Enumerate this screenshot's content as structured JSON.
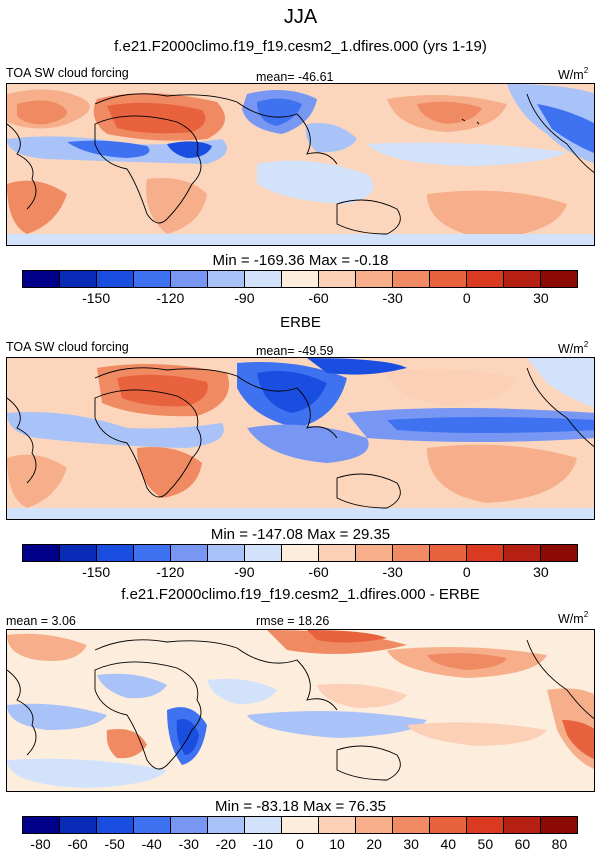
{
  "season": "JJA",
  "panel1": {
    "case_title": "f.e21.F2000climo.f19_f19.cesm2_1.dfires.000 (yrs 1-19)",
    "variable": "TOA SW cloud forcing",
    "mean_label": "mean= -46.61",
    "units": "W/m",
    "units_sup": "2",
    "minmax": "Min = -169.36 Max =  -0.18"
  },
  "panel2": {
    "case_title": "ERBE",
    "variable": "TOA SW cloud forcing",
    "mean_label": "mean= -49.59",
    "units": "W/m",
    "units_sup": "2",
    "minmax": "Min = -147.08 Max =  29.35"
  },
  "panel3": {
    "case_title": "f.e21.F2000climo.f19_f19.cesm2_1.dfires.000 - ERBE",
    "mean_label": "mean =   3.06",
    "rmse_label": "rmse =  18.26",
    "units": "W/m",
    "units_sup": "2",
    "minmax": "Min = -83.18 Max =  76.35"
  },
  "colorbar_abs": {
    "colors": [
      "#00008b",
      "#0a2ab8",
      "#1a4ee0",
      "#3f72f0",
      "#7897f2",
      "#a9c2f7",
      "#d3e2fb",
      "#fdeddc",
      "#fbd0b6",
      "#f6ae8b",
      "#f08a63",
      "#e8623d",
      "#da3a20",
      "#b52012",
      "#8b0a04"
    ],
    "tick_labels": [
      "-150",
      "-120",
      "-90",
      "-60",
      "-30",
      "0",
      "30"
    ]
  },
  "colorbar_diff": {
    "colors": [
      "#00008b",
      "#0a2ab8",
      "#1a4ee0",
      "#3f72f0",
      "#7897f2",
      "#a9c2f7",
      "#d3e2fb",
      "#fdeddc",
      "#fbd0b6",
      "#f6ae8b",
      "#f08a63",
      "#e8623d",
      "#da3a20",
      "#b52012",
      "#8b0a04"
    ],
    "tick_labels": [
      "-80",
      "-60",
      "-50",
      "-40",
      "-30",
      "-20",
      "-10",
      "0",
      "10",
      "20",
      "30",
      "40",
      "50",
      "60",
      "80"
    ]
  },
  "chart_data": [
    {
      "type": "heatmap",
      "title": "TOA SW cloud forcing — f.e21.F2000climo.f19_f19.cesm2_1.dfires.000 (yrs 1-19), JJA",
      "mean": -46.61,
      "min": -169.36,
      "max": -0.18,
      "units": "W/m2",
      "levels": [
        -165,
        -150,
        -135,
        -120,
        -105,
        -90,
        -75,
        -60,
        -45,
        -30,
        -15,
        0,
        15,
        30,
        45
      ]
    },
    {
      "type": "heatmap",
      "title": "TOA SW cloud forcing — ERBE, JJA",
      "mean": -49.59,
      "min": -147.08,
      "max": 29.35,
      "units": "W/m2",
      "levels": [
        -165,
        -150,
        -135,
        -120,
        -105,
        -90,
        -75,
        -60,
        -45,
        -30,
        -15,
        0,
        15,
        30,
        45
      ]
    },
    {
      "type": "heatmap",
      "title": "f.e21.F2000climo.f19_f19.cesm2_1.dfires.000 - ERBE, JJA",
      "mean": 3.06,
      "rmse": 18.26,
      "min": -83.18,
      "max": 76.35,
      "units": "W/m2",
      "levels": [
        -80,
        -60,
        -50,
        -40,
        -30,
        -20,
        -10,
        0,
        10,
        20,
        30,
        40,
        50,
        60,
        80
      ]
    }
  ]
}
